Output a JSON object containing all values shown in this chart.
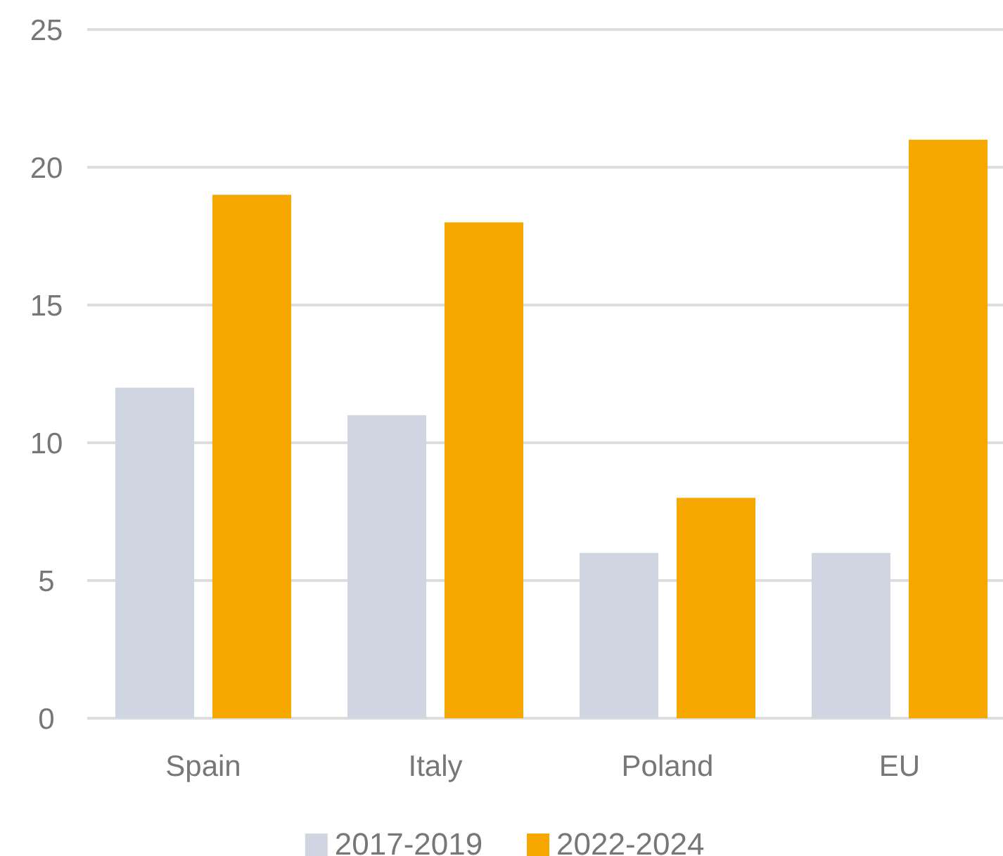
{
  "chart_data": {
    "type": "bar",
    "categories": [
      "Spain",
      "Italy",
      "Poland",
      "EU"
    ],
    "series": [
      {
        "name": "2017-2019",
        "color": "#d0d6e1",
        "values": [
          12,
          11,
          6,
          6
        ]
      },
      {
        "name": "2022-2024",
        "color": "#f7a800",
        "values": [
          19,
          18,
          8,
          21
        ]
      }
    ],
    "ylim": [
      0,
      25
    ],
    "yticks": [
      0,
      5,
      10,
      15,
      20,
      25
    ],
    "grid": "y",
    "legend": "bottom"
  }
}
